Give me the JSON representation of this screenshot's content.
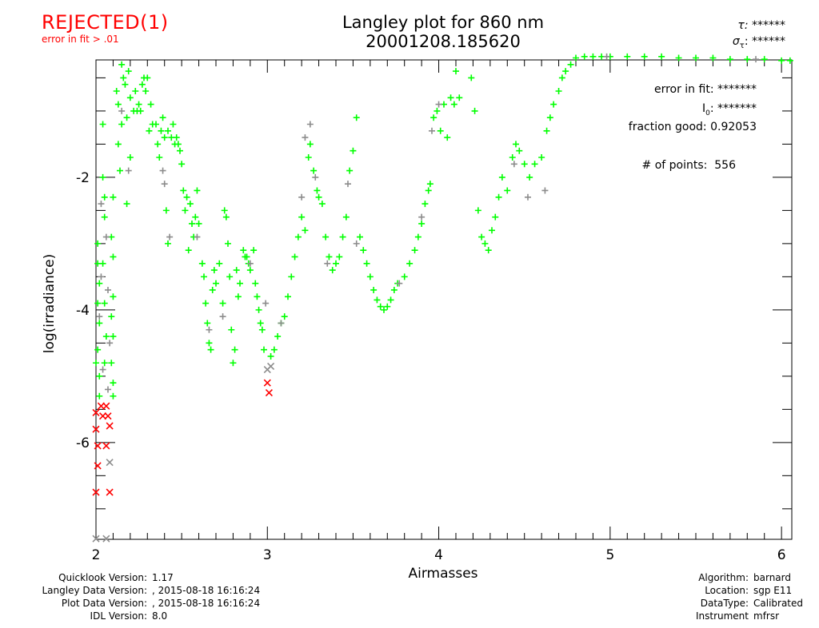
{
  "status": {
    "label": "REJECTED(1)",
    "reason": "error in fit > .01"
  },
  "header": {
    "title": "Langley plot for 860 nm",
    "subtitle": "20001208.185620"
  },
  "fit_summary": {
    "tau_label": "τ:",
    "tau_value": "******",
    "sigma_label": "σ",
    "sigma_sub": "τ",
    "sigma_value": "******"
  },
  "stats": {
    "error_label": "error in fit:",
    "error_value": "*******",
    "i0_label": "I",
    "i0_sub": "0",
    "i0_value": "*******",
    "fraction_label": "fraction good:",
    "fraction_value": "0.92053",
    "points_label": "# of points:",
    "points_value": "556"
  },
  "footer_left": [
    {
      "label": "Quicklook Version:",
      "value": "1.17"
    },
    {
      "label": "Langley Data Version:",
      "value": ", 2015-08-18 16:16:24"
    },
    {
      "label": "Plot Data Version:",
      "value": ", 2015-08-18 16:16:24"
    },
    {
      "label": "IDL Version:",
      "value": "8.0"
    }
  ],
  "footer_right": [
    {
      "label": "Algorithm:",
      "value": "barnard"
    },
    {
      "label": "Location:",
      "value": "sgp E11"
    },
    {
      "label": "DataType:",
      "value": "Calibrated"
    },
    {
      "label": "Instrument",
      "value": "mfrsr"
    }
  ],
  "chart_data": {
    "type": "scatter",
    "xlabel": "Airmasses",
    "ylabel": "log(irradiance)",
    "xlim": [
      2.0,
      6.06
    ],
    "ylim": [
      -7.46,
      -0.23
    ],
    "xticks": [
      "2",
      "3",
      "4",
      "5",
      "6"
    ],
    "yticks": [
      "-2",
      "-4",
      "-6"
    ],
    "grid": false,
    "colors": {
      "good": "#00ff00",
      "excluded": "#8c8c8c",
      "rejected": "#ff0000"
    },
    "series": [
      {
        "marker": "plus",
        "color": "#00ff00",
        "points": [
          [
            2.01,
            -3.0
          ],
          [
            2.01,
            -3.3
          ],
          [
            2.02,
            -3.6
          ],
          [
            2.01,
            -3.9
          ],
          [
            2.02,
            -4.2
          ],
          [
            2.01,
            -4.6
          ],
          [
            2.02,
            -5.0
          ],
          [
            2.02,
            -5.3
          ],
          [
            2.0,
            -4.8
          ],
          [
            2.04,
            -2.0
          ],
          [
            2.05,
            -2.3
          ],
          [
            2.05,
            -2.6
          ],
          [
            2.04,
            -3.3
          ],
          [
            2.05,
            -3.9
          ],
          [
            2.06,
            -4.4
          ],
          [
            2.05,
            -4.8
          ],
          [
            2.04,
            -1.2
          ],
          [
            2.09,
            -2.9
          ],
          [
            2.1,
            -3.2
          ],
          [
            2.1,
            -3.8
          ],
          [
            2.09,
            -4.1
          ],
          [
            2.1,
            -4.4
          ],
          [
            2.09,
            -4.8
          ],
          [
            2.1,
            -5.1
          ],
          [
            2.1,
            -5.3
          ],
          [
            2.1,
            -2.3
          ],
          [
            2.12,
            -0.7
          ],
          [
            2.13,
            -0.9
          ],
          [
            2.13,
            -1.5
          ],
          [
            2.14,
            -1.9
          ],
          [
            2.15,
            -0.3
          ],
          [
            2.15,
            -1.2
          ],
          [
            2.16,
            -0.5
          ],
          [
            2.17,
            -0.6
          ],
          [
            2.18,
            -1.1
          ],
          [
            2.18,
            -2.4
          ],
          [
            2.19,
            -0.4
          ],
          [
            2.2,
            -0.8
          ],
          [
            2.2,
            -1.7
          ],
          [
            2.22,
            -1.0
          ],
          [
            2.23,
            -0.7
          ],
          [
            2.24,
            -1.0
          ],
          [
            2.25,
            -0.9
          ],
          [
            2.26,
            -1.0
          ],
          [
            2.27,
            -0.6
          ],
          [
            2.28,
            -0.5
          ],
          [
            2.29,
            -0.7
          ],
          [
            2.3,
            -0.5
          ],
          [
            2.31,
            -1.3
          ],
          [
            2.32,
            -0.9
          ],
          [
            2.33,
            -1.2
          ],
          [
            2.35,
            -1.2
          ],
          [
            2.36,
            -1.5
          ],
          [
            2.37,
            -1.7
          ],
          [
            2.38,
            -1.3
          ],
          [
            2.39,
            -1.1
          ],
          [
            2.4,
            -1.4
          ],
          [
            2.41,
            -2.5
          ],
          [
            2.42,
            -1.3
          ],
          [
            2.42,
            -3.0
          ],
          [
            2.44,
            -1.4
          ],
          [
            2.45,
            -1.2
          ],
          [
            2.46,
            -1.5
          ],
          [
            2.47,
            -1.4
          ],
          [
            2.48,
            -1.5
          ],
          [
            2.49,
            -1.6
          ],
          [
            2.5,
            -1.8
          ],
          [
            2.51,
            -2.2
          ],
          [
            2.52,
            -2.5
          ],
          [
            2.53,
            -2.3
          ],
          [
            2.54,
            -3.1
          ],
          [
            2.55,
            -2.4
          ],
          [
            2.56,
            -2.7
          ],
          [
            2.57,
            -2.9
          ],
          [
            2.58,
            -2.6
          ],
          [
            2.59,
            -2.2
          ],
          [
            2.6,
            -2.7
          ],
          [
            2.62,
            -3.3
          ],
          [
            2.63,
            -3.5
          ],
          [
            2.64,
            -3.9
          ],
          [
            2.65,
            -4.2
          ],
          [
            2.66,
            -4.5
          ],
          [
            2.67,
            -4.6
          ],
          [
            2.68,
            -3.7
          ],
          [
            2.69,
            -3.4
          ],
          [
            2.7,
            -3.6
          ],
          [
            2.72,
            -3.3
          ],
          [
            2.74,
            -3.9
          ],
          [
            2.75,
            -2.5
          ],
          [
            2.76,
            -2.6
          ],
          [
            2.77,
            -3.0
          ],
          [
            2.78,
            -3.5
          ],
          [
            2.79,
            -4.3
          ],
          [
            2.8,
            -4.8
          ],
          [
            2.81,
            -4.6
          ],
          [
            2.82,
            -3.4
          ],
          [
            2.83,
            -3.8
          ],
          [
            2.84,
            -3.6
          ],
          [
            2.86,
            -3.1
          ],
          [
            2.87,
            -3.2
          ],
          [
            2.88,
            -3.2
          ],
          [
            2.89,
            -3.3
          ],
          [
            2.9,
            -3.4
          ],
          [
            2.92,
            -3.1
          ],
          [
            2.93,
            -3.6
          ],
          [
            2.94,
            -3.8
          ],
          [
            2.95,
            -4.0
          ],
          [
            2.96,
            -4.2
          ],
          [
            2.97,
            -4.3
          ],
          [
            2.98,
            -4.6
          ],
          [
            3.02,
            -4.7
          ],
          [
            3.04,
            -4.6
          ],
          [
            3.06,
            -4.4
          ],
          [
            3.08,
            -4.2
          ],
          [
            3.1,
            -4.1
          ],
          [
            3.12,
            -3.8
          ],
          [
            3.14,
            -3.5
          ],
          [
            3.16,
            -3.2
          ],
          [
            3.18,
            -2.9
          ],
          [
            3.2,
            -2.6
          ],
          [
            3.22,
            -2.8
          ],
          [
            3.24,
            -1.7
          ],
          [
            3.25,
            -1.5
          ],
          [
            3.27,
            -1.9
          ],
          [
            3.29,
            -2.2
          ],
          [
            3.3,
            -2.3
          ],
          [
            3.32,
            -2.4
          ],
          [
            3.34,
            -2.9
          ],
          [
            3.36,
            -3.2
          ],
          [
            3.38,
            -3.4
          ],
          [
            3.4,
            -3.3
          ],
          [
            3.42,
            -3.2
          ],
          [
            3.44,
            -2.9
          ],
          [
            3.46,
            -2.6
          ],
          [
            3.48,
            -1.9
          ],
          [
            3.5,
            -1.6
          ],
          [
            3.52,
            -1.1
          ],
          [
            3.54,
            -2.9
          ],
          [
            3.56,
            -3.1
          ],
          [
            3.58,
            -3.3
          ],
          [
            3.6,
            -3.5
          ],
          [
            3.62,
            -3.7
          ],
          [
            3.64,
            -3.85
          ],
          [
            3.66,
            -3.95
          ],
          [
            3.68,
            -4.0
          ],
          [
            3.7,
            -3.95
          ],
          [
            3.72,
            -3.85
          ],
          [
            3.74,
            -3.7
          ],
          [
            3.76,
            -3.6
          ],
          [
            3.8,
            -3.5
          ],
          [
            3.83,
            -3.3
          ],
          [
            3.86,
            -3.1
          ],
          [
            3.88,
            -2.9
          ],
          [
            3.9,
            -2.7
          ],
          [
            3.92,
            -2.4
          ],
          [
            3.94,
            -2.2
          ],
          [
            3.95,
            -2.1
          ],
          [
            3.97,
            -1.1
          ],
          [
            3.99,
            -1.0
          ],
          [
            4.01,
            -1.3
          ],
          [
            4.03,
            -0.9
          ],
          [
            4.05,
            -1.4
          ],
          [
            4.07,
            -0.8
          ],
          [
            4.09,
            -0.9
          ],
          [
            4.1,
            -0.4
          ],
          [
            4.12,
            -0.8
          ],
          [
            4.19,
            -0.5
          ],
          [
            4.21,
            -1.0
          ],
          [
            4.23,
            -2.5
          ],
          [
            4.25,
            -2.9
          ],
          [
            4.27,
            -3.0
          ],
          [
            4.29,
            -3.1
          ],
          [
            4.31,
            -2.8
          ],
          [
            4.33,
            -2.6
          ],
          [
            4.35,
            -2.3
          ],
          [
            4.37,
            -2.0
          ],
          [
            4.4,
            -2.2
          ],
          [
            4.43,
            -1.7
          ],
          [
            4.45,
            -1.5
          ],
          [
            4.47,
            -1.6
          ],
          [
            4.5,
            -1.8
          ],
          [
            4.53,
            -2.0
          ],
          [
            4.56,
            -1.8
          ],
          [
            4.6,
            -1.7
          ],
          [
            4.63,
            -1.3
          ],
          [
            4.65,
            -1.1
          ],
          [
            4.67,
            -0.9
          ],
          [
            4.7,
            -0.7
          ],
          [
            4.72,
            -0.5
          ],
          [
            4.74,
            -0.4
          ],
          [
            4.77,
            -0.3
          ],
          [
            4.8,
            -0.2
          ],
          [
            4.85,
            -0.18
          ],
          [
            4.9,
            -0.18
          ],
          [
            4.95,
            -0.18
          ],
          [
            5.0,
            -0.18
          ],
          [
            5.1,
            -0.18
          ],
          [
            5.2,
            -0.18
          ],
          [
            5.3,
            -0.18
          ],
          [
            5.4,
            -0.2
          ],
          [
            5.5,
            -0.2
          ],
          [
            5.6,
            -0.2
          ],
          [
            5.7,
            -0.22
          ],
          [
            5.8,
            -0.22
          ],
          [
            5.9,
            -0.22
          ],
          [
            6.0,
            -0.24
          ],
          [
            6.05,
            -0.24
          ]
        ]
      },
      {
        "marker": "plus",
        "color": "#8c8c8c",
        "points": [
          [
            2.03,
            -2.4
          ],
          [
            2.06,
            -2.9
          ],
          [
            2.03,
            -3.5
          ],
          [
            2.07,
            -3.7
          ],
          [
            2.02,
            -4.1
          ],
          [
            2.08,
            -4.5
          ],
          [
            2.04,
            -4.9
          ],
          [
            2.07,
            -5.2
          ],
          [
            2.15,
            -1.0
          ],
          [
            2.19,
            -1.9
          ],
          [
            2.39,
            -1.9
          ],
          [
            2.4,
            -2.1
          ],
          [
            2.43,
            -2.9
          ],
          [
            2.59,
            -2.9
          ],
          [
            2.66,
            -4.3
          ],
          [
            2.74,
            -4.1
          ],
          [
            2.9,
            -3.3
          ],
          [
            2.99,
            -3.9
          ],
          [
            3.08,
            -4.2
          ],
          [
            3.2,
            -2.3
          ],
          [
            3.22,
            -1.4
          ],
          [
            3.25,
            -1.2
          ],
          [
            3.28,
            -2.0
          ],
          [
            3.35,
            -3.3
          ],
          [
            3.47,
            -2.1
          ],
          [
            3.52,
            -3.0
          ],
          [
            3.77,
            -3.6
          ],
          [
            3.9,
            -2.6
          ],
          [
            3.96,
            -1.3
          ],
          [
            4.0,
            -0.9
          ],
          [
            4.44,
            -1.8
          ],
          [
            4.52,
            -2.3
          ],
          [
            4.62,
            -2.2
          ],
          [
            4.98,
            -0.18
          ],
          [
            5.85,
            -0.22
          ]
        ]
      },
      {
        "marker": "x",
        "color": "#ff0000",
        "points": [
          [
            2.0,
            -5.55
          ],
          [
            2.0,
            -5.8
          ],
          [
            2.01,
            -6.05
          ],
          [
            2.01,
            -6.35
          ],
          [
            2.0,
            -6.75
          ],
          [
            2.03,
            -5.45
          ],
          [
            2.04,
            -5.6
          ],
          [
            2.06,
            -5.45
          ],
          [
            2.07,
            -5.6
          ],
          [
            2.06,
            -6.05
          ],
          [
            2.08,
            -6.75
          ],
          [
            2.08,
            -5.75
          ],
          [
            3.0,
            -5.1
          ],
          [
            3.01,
            -5.25
          ]
        ]
      },
      {
        "marker": "x",
        "color": "#8c8c8c",
        "points": [
          [
            2.08,
            -6.3
          ],
          [
            2.0,
            -7.45
          ],
          [
            2.06,
            -7.45
          ],
          [
            3.02,
            -4.85
          ],
          [
            3.0,
            -4.9
          ]
        ]
      }
    ]
  }
}
